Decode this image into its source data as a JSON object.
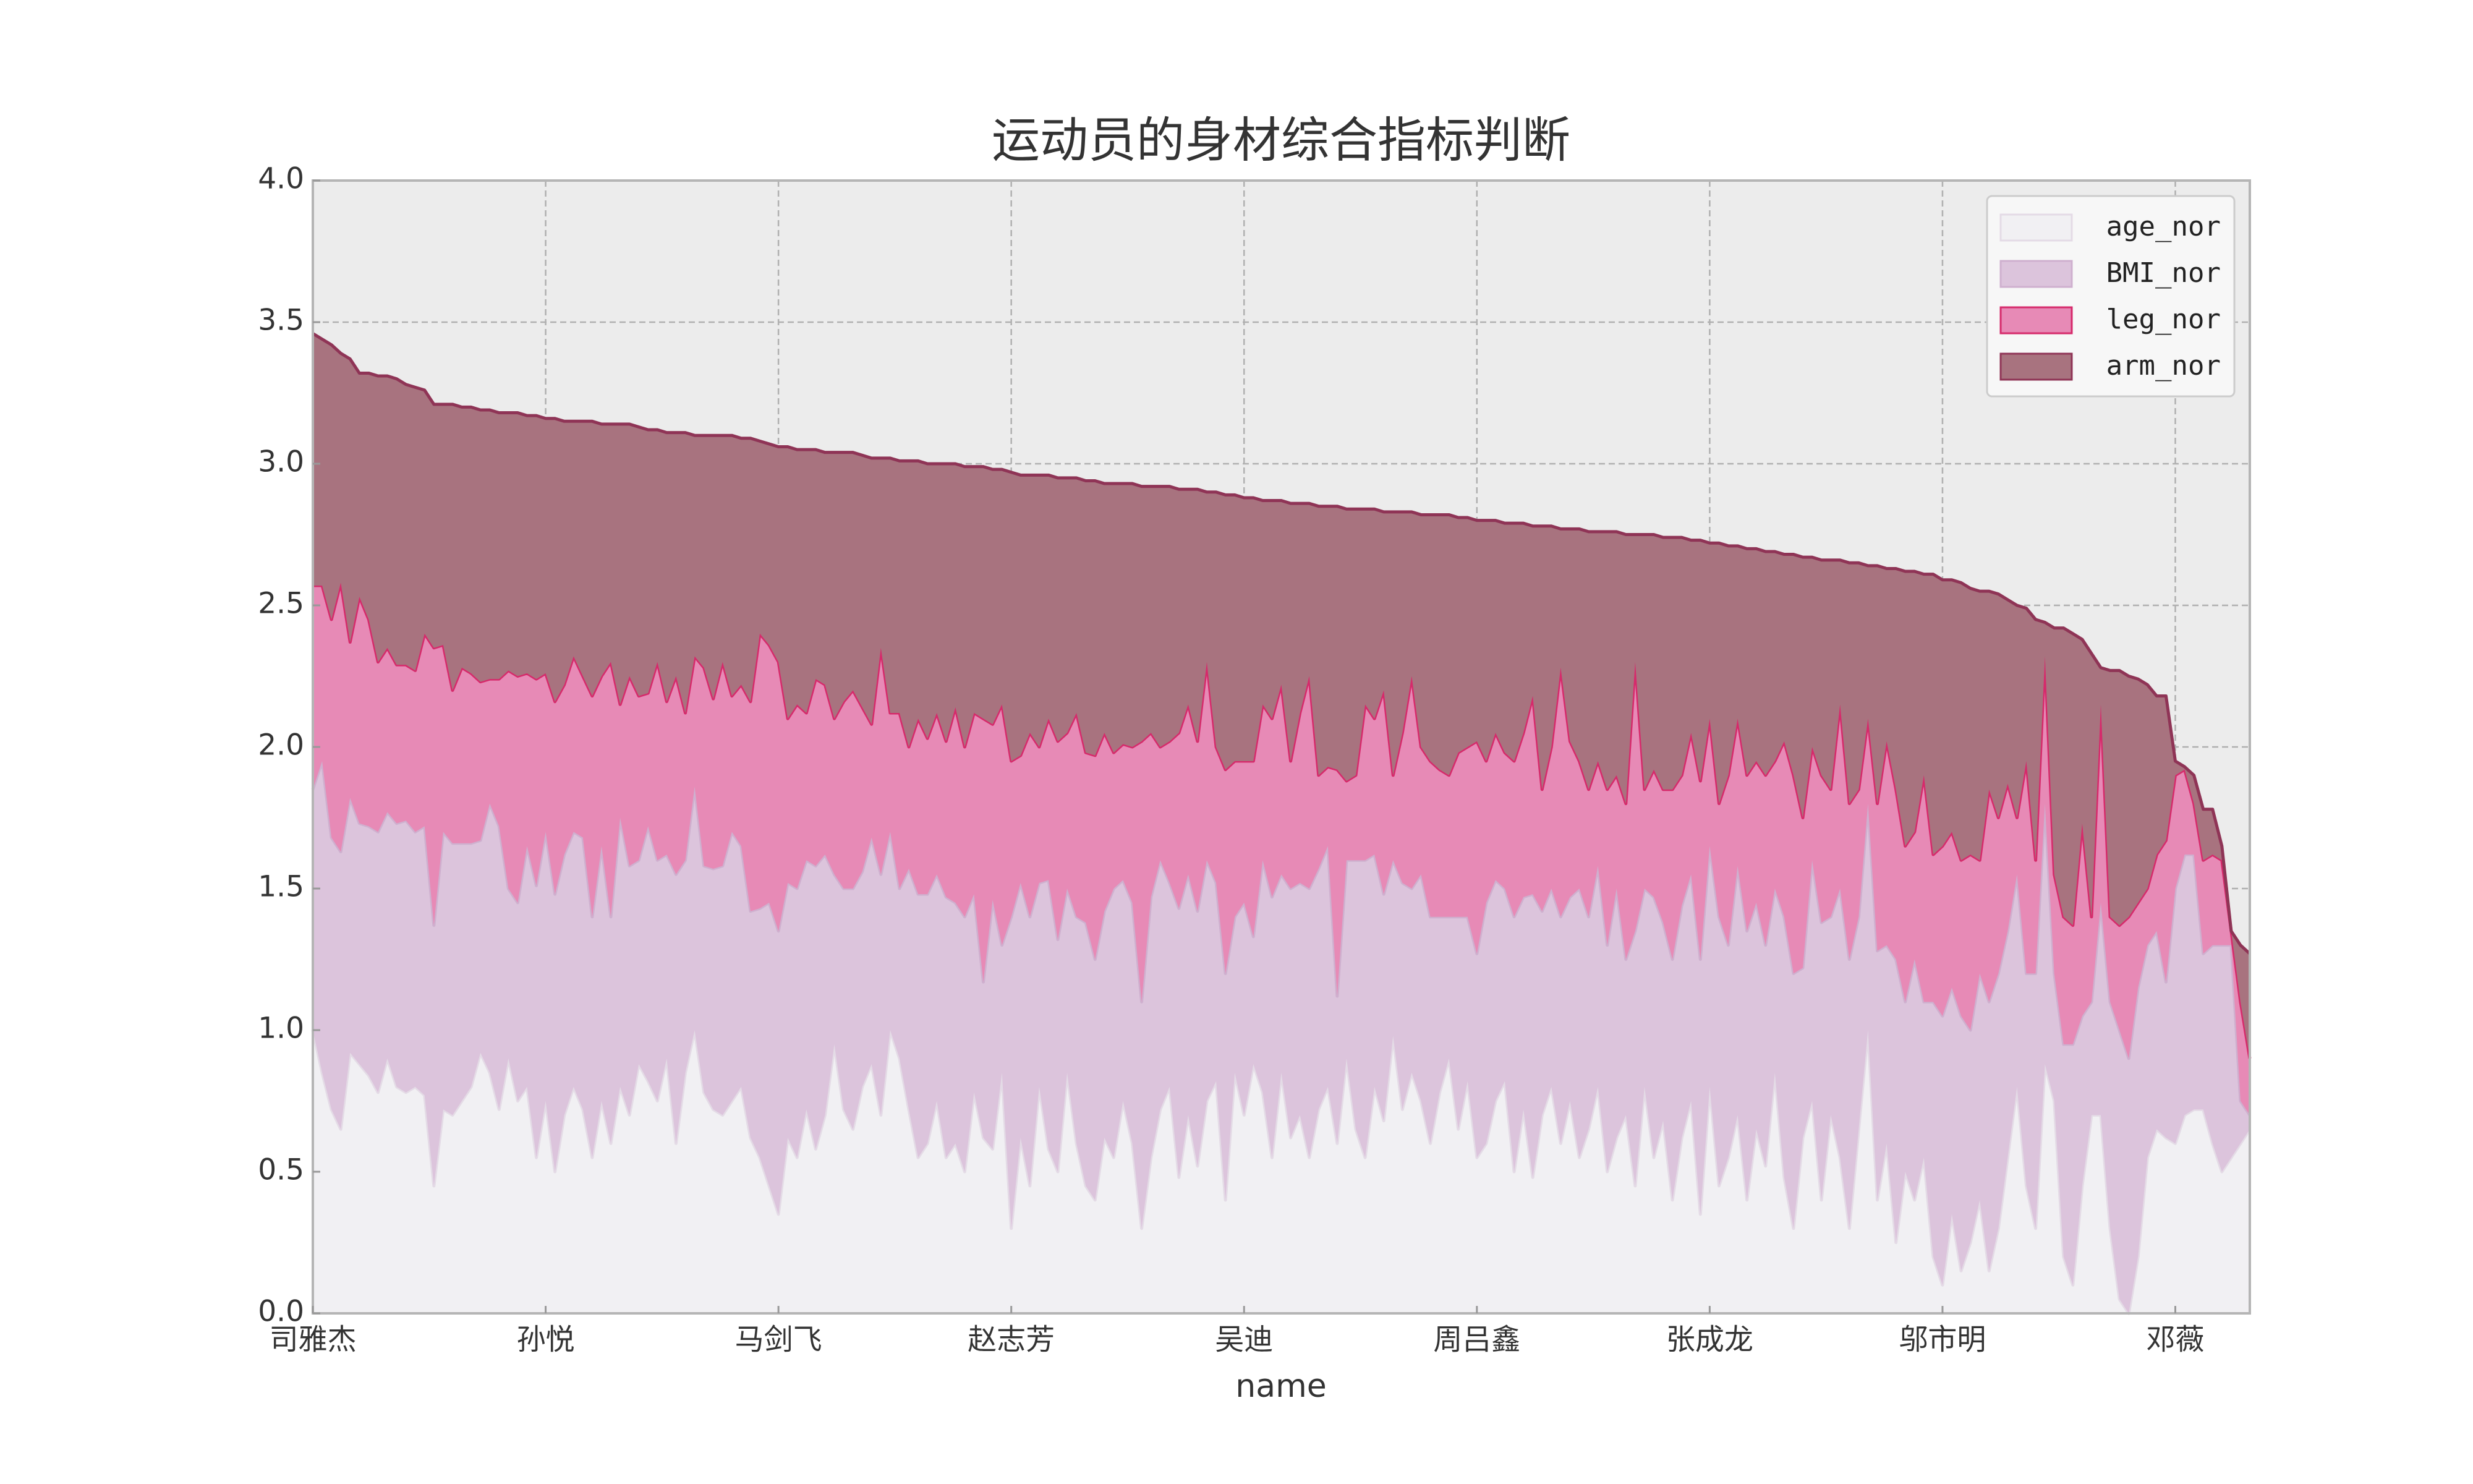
{
  "chart_data": {
    "type": "stacked_area",
    "title": "运动员的身材综合指标判断",
    "x_label": "name",
    "categories": [
      "司雅杰",
      null,
      null,
      null,
      null,
      null,
      null,
      null,
      null,
      null,
      null,
      null,
      null,
      null,
      null,
      null,
      null,
      null,
      null,
      null,
      null,
      null,
      null,
      null,
      null,
      "孙悦",
      null,
      null,
      null,
      null,
      null,
      null,
      null,
      null,
      null,
      null,
      null,
      null,
      null,
      null,
      null,
      null,
      null,
      null,
      null,
      null,
      null,
      null,
      null,
      null,
      "马剑飞",
      null,
      null,
      null,
      null,
      null,
      null,
      null,
      null,
      null,
      null,
      null,
      null,
      null,
      null,
      null,
      null,
      null,
      null,
      null,
      null,
      null,
      null,
      null,
      null,
      "赵志芳",
      null,
      null,
      null,
      null,
      null,
      null,
      null,
      null,
      null,
      null,
      null,
      null,
      null,
      null,
      null,
      null,
      null,
      null,
      null,
      null,
      null,
      null,
      null,
      null,
      "吴迪",
      null,
      null,
      null,
      null,
      null,
      null,
      null,
      null,
      null,
      null,
      null,
      null,
      null,
      null,
      null,
      null,
      null,
      null,
      null,
      null,
      null,
      null,
      null,
      null,
      "周吕鑫",
      null,
      null,
      null,
      null,
      null,
      null,
      null,
      null,
      null,
      null,
      null,
      null,
      null,
      null,
      null,
      null,
      null,
      null,
      null,
      null,
      null,
      null,
      null,
      null,
      "张成龙",
      null,
      null,
      null,
      null,
      null,
      null,
      null,
      null,
      null,
      null,
      null,
      null,
      null,
      null,
      null,
      null,
      null,
      null,
      null,
      null,
      null,
      null,
      null,
      null,
      "邬市明",
      null,
      null,
      null,
      null,
      null,
      null,
      null,
      null,
      null,
      null,
      null,
      null,
      null,
      null,
      null,
      null,
      null,
      null,
      null,
      null,
      null,
      null,
      null,
      null,
      "邓薇",
      null,
      null,
      null,
      null,
      null,
      null,
      null,
      null
    ],
    "series": [
      {
        "name": "age_nor",
        "color": "#f1f0f3",
        "line_color": "#e4dbe6",
        "values": [
          1.0,
          0.85,
          0.72,
          0.65,
          0.92,
          0.88,
          0.84,
          0.78,
          0.9,
          0.8,
          0.78,
          0.8,
          0.77,
          0.45,
          0.72,
          0.7,
          0.75,
          0.8,
          0.92,
          0.85,
          0.72,
          0.9,
          0.75,
          0.8,
          0.55,
          0.75,
          0.5,
          0.7,
          0.8,
          0.72,
          0.55,
          0.75,
          0.6,
          0.8,
          0.7,
          0.88,
          0.82,
          0.75,
          0.9,
          0.6,
          0.85,
          1.0,
          0.78,
          0.72,
          0.7,
          0.75,
          0.8,
          0.62,
          0.55,
          0.45,
          0.35,
          0.62,
          0.55,
          0.72,
          0.58,
          0.7,
          0.95,
          0.72,
          0.65,
          0.8,
          0.88,
          0.7,
          1.0,
          0.9,
          0.72,
          0.55,
          0.6,
          0.75,
          0.55,
          0.6,
          0.5,
          0.78,
          0.62,
          0.58,
          0.85,
          0.3,
          0.62,
          0.45,
          0.8,
          0.58,
          0.5,
          0.85,
          0.6,
          0.45,
          0.4,
          0.62,
          0.55,
          0.75,
          0.6,
          0.3,
          0.55,
          0.72,
          0.8,
          0.48,
          0.7,
          0.52,
          0.75,
          0.82,
          0.4,
          0.85,
          0.7,
          0.88,
          0.78,
          0.55,
          0.85,
          0.62,
          0.7,
          0.55,
          0.72,
          0.8,
          0.6,
          0.9,
          0.65,
          0.55,
          0.8,
          0.68,
          0.98,
          0.72,
          0.85,
          0.75,
          0.6,
          0.78,
          0.9,
          0.65,
          0.82,
          0.55,
          0.6,
          0.75,
          0.82,
          0.5,
          0.72,
          0.48,
          0.7,
          0.8,
          0.6,
          0.75,
          0.55,
          0.65,
          0.8,
          0.5,
          0.62,
          0.7,
          0.45,
          0.8,
          0.55,
          0.68,
          0.4,
          0.62,
          0.75,
          0.35,
          0.8,
          0.45,
          0.55,
          0.7,
          0.4,
          0.65,
          0.52,
          0.85,
          0.48,
          0.3,
          0.62,
          0.75,
          0.4,
          0.7,
          0.55,
          0.3,
          0.65,
          1.0,
          0.4,
          0.6,
          0.25,
          0.5,
          0.4,
          0.55,
          0.2,
          0.1,
          0.35,
          0.15,
          0.25,
          0.4,
          0.15,
          0.3,
          0.55,
          0.8,
          0.45,
          0.3,
          0.88,
          0.75,
          0.2,
          0.1,
          0.45,
          0.7,
          0.7,
          0.3,
          0.05,
          0.0,
          0.2,
          0.55,
          0.65,
          0.62,
          0.6,
          0.7,
          0.72,
          0.72,
          0.6,
          0.5,
          0.55,
          0.6,
          0.65
        ]
      },
      {
        "name": "BMI_nor",
        "color": "#dcc4dc",
        "line_color": "#cfb0cf",
        "values": [
          0.85,
          1.1,
          0.96,
          0.98,
          0.9,
          0.85,
          0.88,
          0.92,
          0.87,
          0.93,
          0.96,
          0.9,
          0.95,
          0.92,
          0.98,
          0.96,
          0.91,
          0.86,
          0.75,
          0.95,
          1.0,
          0.6,
          0.7,
          0.85,
          0.96,
          0.95,
          0.98,
          0.92,
          0.9,
          0.96,
          0.85,
          0.9,
          0.8,
          0.95,
          0.88,
          0.72,
          0.9,
          0.85,
          0.72,
          0.95,
          0.75,
          0.86,
          0.8,
          0.85,
          0.88,
          0.95,
          0.85,
          0.8,
          0.88,
          1.0,
          1.0,
          0.9,
          0.95,
          0.88,
          1.0,
          0.92,
          0.6,
          0.78,
          0.85,
          0.76,
          0.8,
          0.85,
          0.7,
          0.6,
          0.85,
          0.93,
          0.88,
          0.8,
          0.92,
          0.85,
          0.9,
          0.7,
          0.55,
          0.88,
          0.45,
          1.1,
          0.9,
          0.95,
          0.72,
          0.95,
          0.82,
          0.65,
          0.8,
          0.93,
          0.85,
          0.8,
          0.95,
          0.78,
          0.85,
          0.8,
          0.92,
          0.88,
          0.72,
          0.95,
          0.85,
          0.9,
          0.85,
          0.7,
          0.8,
          0.55,
          0.75,
          0.45,
          0.82,
          0.92,
          0.7,
          0.88,
          0.82,
          0.95,
          0.85,
          0.85,
          0.52,
          0.7,
          0.95,
          1.05,
          0.82,
          0.8,
          0.62,
          0.8,
          0.65,
          0.8,
          0.8,
          0.62,
          0.5,
          0.75,
          0.58,
          0.72,
          0.85,
          0.78,
          0.68,
          0.9,
          0.75,
          1.0,
          0.72,
          0.7,
          0.8,
          0.72,
          0.95,
          0.75,
          0.78,
          0.8,
          0.88,
          0.55,
          0.9,
          0.7,
          0.92,
          0.7,
          0.85,
          0.82,
          0.8,
          0.9,
          0.85,
          0.95,
          0.75,
          0.88,
          0.95,
          0.8,
          0.78,
          0.65,
          0.92,
          0.9,
          0.6,
          0.85,
          0.98,
          0.7,
          0.95,
          0.95,
          0.75,
          0.8,
          0.88,
          0.7,
          1.0,
          0.6,
          0.85,
          0.55,
          0.9,
          0.95,
          0.8,
          0.9,
          0.75,
          0.8,
          0.95,
          0.9,
          0.8,
          0.75,
          0.75,
          0.9,
          0.92,
          0.45,
          0.75,
          0.85,
          0.6,
          0.4,
          0.75,
          0.8,
          0.95,
          0.9,
          0.95,
          0.75,
          0.7,
          0.55,
          0.9,
          0.92,
          0.9,
          0.55,
          0.7,
          0.8,
          0.75,
          0.15,
          0.05
        ]
      },
      {
        "name": "leg_nor",
        "color": "#e78ab6",
        "line_color": "#d62a6b",
        "values": [
          0.72,
          0.62,
          0.77,
          0.95,
          0.55,
          0.8,
          0.73,
          0.6,
          0.58,
          0.56,
          0.55,
          0.57,
          0.68,
          0.98,
          0.66,
          0.54,
          0.62,
          0.6,
          0.56,
          0.44,
          0.52,
          0.77,
          0.8,
          0.61,
          0.73,
          0.56,
          0.68,
          0.6,
          0.62,
          0.57,
          0.78,
          0.6,
          0.9,
          0.4,
          0.67,
          0.58,
          0.47,
          0.7,
          0.54,
          0.7,
          0.52,
          0.46,
          0.7,
          0.6,
          0.72,
          0.48,
          0.57,
          0.74,
          0.97,
          0.91,
          0.95,
          0.58,
          0.65,
          0.52,
          0.66,
          0.6,
          0.55,
          0.66,
          0.7,
          0.58,
          0.4,
          0.8,
          0.42,
          0.62,
          0.43,
          0.62,
          0.55,
          0.57,
          0.55,
          0.69,
          0.6,
          0.64,
          0.93,
          0.62,
          0.85,
          0.55,
          0.45,
          0.65,
          0.48,
          0.57,
          0.7,
          0.55,
          0.72,
          0.6,
          0.72,
          0.63,
          0.48,
          0.48,
          0.55,
          0.92,
          0.58,
          0.4,
          0.5,
          0.62,
          0.6,
          0.6,
          0.7,
          0.48,
          0.72,
          0.55,
          0.5,
          0.62,
          0.55,
          0.63,
          0.67,
          0.45,
          0.6,
          0.75,
          0.33,
          0.28,
          0.8,
          0.28,
          0.3,
          0.55,
          0.48,
          0.72,
          0.3,
          0.53,
          0.75,
          0.45,
          0.55,
          0.52,
          0.5,
          0.58,
          0.6,
          0.75,
          0.5,
          0.52,
          0.48,
          0.55,
          0.58,
          0.7,
          0.43,
          0.5,
          0.88,
          0.55,
          0.45,
          0.45,
          0.37,
          0.55,
          0.4,
          0.55,
          0.95,
          0.35,
          0.45,
          0.47,
          0.6,
          0.46,
          0.5,
          0.63,
          0.45,
          0.4,
          0.6,
          0.52,
          0.55,
          0.5,
          0.6,
          0.45,
          0.62,
          0.7,
          0.53,
          0.4,
          0.52,
          0.45,
          0.65,
          0.55,
          0.45,
          0.3,
          0.52,
          0.72,
          0.6,
          0.55,
          0.45,
          0.8,
          0.52,
          0.6,
          0.55,
          0.55,
          0.62,
          0.4,
          0.75,
          0.55,
          0.52,
          0.2,
          0.75,
          0.4,
          0.52,
          0.35,
          0.45,
          0.42,
          0.68,
          0.3,
          0.7,
          0.3,
          0.37,
          0.5,
          0.3,
          0.2,
          0.27,
          0.5,
          0.4,
          0.3,
          0.18,
          0.33,
          0.32,
          0.3,
          0.05,
          0.35,
          0.2
        ]
      },
      {
        "name": "arm_nor",
        "color": "#a8737f",
        "line_color": "#8f3456",
        "values": [
          0.89,
          0.87,
          0.97,
          0.81,
          1.0,
          0.79,
          0.87,
          1.01,
          0.96,
          1.01,
          0.99,
          1.0,
          0.86,
          0.86,
          0.85,
          1.01,
          0.92,
          0.94,
          0.96,
          0.95,
          0.94,
          0.91,
          0.93,
          0.91,
          0.93,
          0.9,
          1.0,
          0.93,
          0.83,
          0.9,
          0.97,
          0.89,
          0.84,
          0.99,
          0.89,
          0.95,
          0.93,
          0.82,
          0.95,
          0.86,
          0.99,
          0.78,
          0.82,
          0.93,
          0.8,
          0.92,
          0.87,
          0.93,
          0.68,
          0.71,
          0.76,
          0.96,
          0.9,
          0.93,
          0.81,
          0.82,
          0.94,
          0.88,
          0.84,
          0.89,
          0.94,
          0.67,
          0.9,
          0.89,
          1.01,
          0.91,
          0.97,
          0.88,
          0.98,
          0.86,
          0.99,
          0.87,
          0.89,
          0.9,
          0.83,
          1.02,
          0.99,
          0.91,
          0.96,
          0.86,
          0.93,
          0.9,
          0.83,
          0.96,
          0.97,
          0.88,
          0.95,
          0.92,
          0.93,
          0.9,
          0.87,
          0.92,
          0.9,
          0.86,
          0.76,
          0.89,
          0.6,
          0.9,
          0.97,
          0.94,
          0.93,
          0.93,
          0.72,
          0.77,
          0.65,
          0.91,
          0.74,
          0.61,
          0.95,
          0.92,
          0.93,
          0.96,
          0.94,
          0.69,
          0.74,
          0.63,
          0.93,
          0.78,
          0.58,
          0.82,
          0.87,
          0.9,
          0.92,
          0.83,
          0.81,
          0.78,
          0.85,
          0.75,
          0.81,
          0.84,
          0.74,
          0.6,
          0.93,
          0.78,
          0.49,
          0.75,
          0.82,
          0.91,
          0.81,
          0.91,
          0.86,
          0.95,
          0.45,
          0.9,
          0.83,
          0.89,
          0.89,
          0.84,
          0.68,
          0.85,
          0.62,
          0.92,
          0.81,
          0.61,
          0.8,
          0.75,
          0.79,
          0.74,
          0.66,
          0.78,
          0.92,
          0.67,
          0.76,
          0.81,
          0.51,
          0.85,
          0.8,
          0.54,
          0.84,
          0.61,
          0.78,
          0.97,
          0.92,
          0.71,
          0.99,
          0.94,
          0.89,
          0.98,
          0.94,
          0.95,
          0.7,
          0.79,
          0.65,
          0.75,
          0.54,
          0.85,
          0.12,
          0.87,
          1.02,
          1.03,
          0.65,
          0.93,
          0.13,
          0.87,
          0.9,
          0.85,
          0.79,
          0.72,
          0.56,
          0.51,
          0.05,
          0.01,
          0.1,
          0.18,
          0.16,
          0.05,
          0.0,
          0.2,
          0.37
        ]
      }
    ],
    "ylim": [
      0,
      4
    ],
    "yticks": [
      {
        "value": 0,
        "label": "0.0"
      },
      0.5,
      {
        "value": 1,
        "label": "1.0"
      },
      1.5,
      {
        "value": 2,
        "label": "2.0"
      },
      2.5,
      {
        "value": 3,
        "label": "3.0"
      },
      3.5,
      {
        "value": 4,
        "label": "4.0"
      }
    ],
    "grid": true,
    "legend": "upper right"
  }
}
